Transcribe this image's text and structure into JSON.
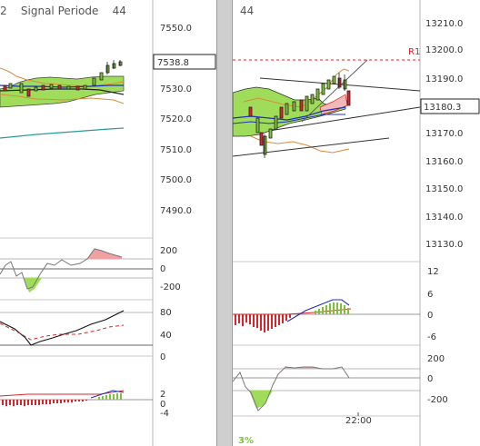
{
  "left": {
    "header": {
      "period_fragment": "2",
      "label": "Signal Periode",
      "value": "44"
    },
    "price_axis": [
      "7550.0",
      "7540.0",
      "7530.0",
      "7520.0",
      "7510.0",
      "7500.0",
      "7490.0"
    ],
    "price_box": "7538.8",
    "ind1_axis": [
      "200",
      "0",
      "-200"
    ],
    "ind2_axis": [
      "80",
      "40",
      "0"
    ],
    "ind3_axis": [
      "2",
      "0",
      "-4"
    ]
  },
  "right": {
    "header": {
      "value": "44"
    },
    "price_axis": [
      "13210.0",
      "13200.0",
      "13190.0",
      "13180.0",
      "13170.0",
      "13160.0",
      "13150.0",
      "13140.0",
      "13130.0"
    ],
    "price_box": "13180.3",
    "r1_label": "R1",
    "ind1_axis": [
      "12",
      "6",
      "0",
      "-6"
    ],
    "ind2_axis": [
      "200",
      "0",
      "-200"
    ],
    "time_label": "22:00",
    "footer_pct": "3%"
  },
  "colors": {
    "green_fill": "#9fdc5a",
    "bull": "#7cc236",
    "bear": "#d9242a",
    "r1_line": "#d9242a",
    "sma_orange": "#d98c3a",
    "sma_blue": "#1f2fbf",
    "sma_teal": "#2a9a9a"
  }
}
